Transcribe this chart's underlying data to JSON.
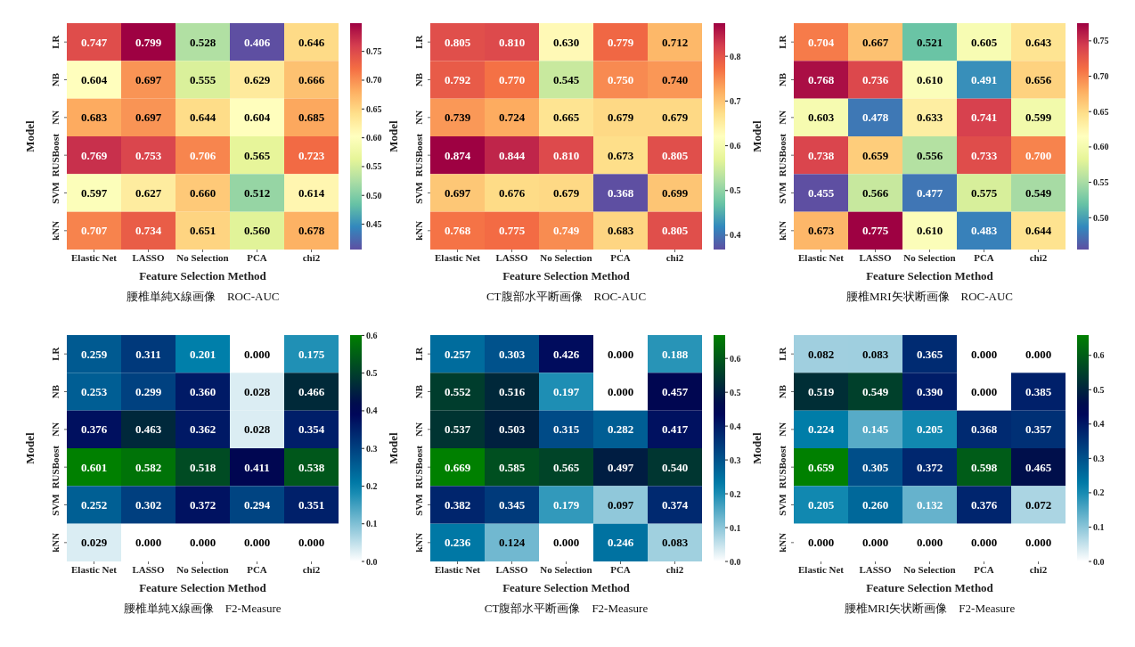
{
  "chart_data": [
    {
      "type": "heatmap",
      "title": "腰椎単純X線画像　ROC-AUC",
      "xlabel": "Feature Selection Method",
      "ylabel": "Model",
      "categories": [
        "Elastic Net",
        "LASSO",
        "No Selection",
        "PCA",
        "chi2"
      ],
      "y_categories": [
        "LR",
        "NB",
        "NN",
        "RUSBoost",
        "SVM",
        "kNN"
      ],
      "cells": [
        [
          0.747,
          0.799,
          0.528,
          0.406,
          0.646
        ],
        [
          0.604,
          0.697,
          0.555,
          0.629,
          0.666
        ],
        [
          0.683,
          0.697,
          0.644,
          0.604,
          0.685
        ],
        [
          0.769,
          0.753,
          0.706,
          0.565,
          0.723
        ],
        [
          0.597,
          0.627,
          0.66,
          0.512,
          0.614
        ],
        [
          0.707,
          0.734,
          0.651,
          0.56,
          0.678
        ]
      ],
      "cell_labels": [
        [
          "0.747",
          "0.799",
          "0.528",
          "0.406",
          "0.646"
        ],
        [
          "0.604",
          "0.697",
          "0.555",
          "0.629",
          "0.666"
        ],
        [
          "0.683",
          "0.697",
          "0.644",
          "0.604",
          "0.685"
        ],
        [
          "0.769",
          "0.753",
          "0.706",
          "0.565",
          "0.723"
        ],
        [
          "0.597",
          "0.627",
          "0.660",
          "0.512",
          "0.614"
        ],
        [
          "0.707",
          "0.734",
          "0.651",
          "0.560",
          "0.678"
        ]
      ],
      "clim": [
        0.406,
        0.799
      ],
      "cticks": [
        {
          "value": 0.45,
          "label": "0.45"
        },
        {
          "value": 0.5,
          "label": "0.50"
        },
        {
          "value": 0.55,
          "label": "0.55"
        },
        {
          "value": 0.6,
          "label": "0.60"
        },
        {
          "value": 0.65,
          "label": "0.65"
        },
        {
          "value": 0.7,
          "label": "0.70"
        },
        {
          "value": 0.75,
          "label": "0.75"
        }
      ]
    },
    {
      "type": "heatmap",
      "title": "CT腹部水平断画像　ROC-AUC",
      "xlabel": "Feature Selection Method",
      "ylabel": "Model",
      "categories": [
        "Elastic Net",
        "LASSO",
        "No Selection",
        "PCA",
        "chi2"
      ],
      "y_categories": [
        "LR",
        "NB",
        "NN",
        "RUSBoost",
        "SVM",
        "kNN"
      ],
      "cells": [
        [
          0.805,
          0.81,
          0.63,
          0.779,
          0.712
        ],
        [
          0.792,
          0.77,
          0.545,
          0.75,
          0.74
        ],
        [
          0.739,
          0.724,
          0.665,
          0.679,
          0.679
        ],
        [
          0.874,
          0.844,
          0.81,
          0.673,
          0.805
        ],
        [
          0.697,
          0.676,
          0.679,
          0.368,
          0.699
        ],
        [
          0.768,
          0.775,
          0.749,
          0.683,
          0.805
        ]
      ],
      "cell_labels": [
        [
          "0.805",
          "0.810",
          "0.630",
          "0.779",
          "0.712"
        ],
        [
          "0.792",
          "0.770",
          "0.545",
          "0.750",
          "0.740"
        ],
        [
          "0.739",
          "0.724",
          "0.665",
          "0.679",
          "0.679"
        ],
        [
          "0.874",
          "0.844",
          "0.810",
          "0.673",
          "0.805"
        ],
        [
          "0.697",
          "0.676",
          "0.679",
          "0.368",
          "0.699"
        ],
        [
          "0.768",
          "0.775",
          "0.749",
          "0.683",
          "0.805"
        ]
      ],
      "clim": [
        0.368,
        0.874
      ],
      "cticks": [
        0.4,
        0.5,
        0.6,
        0.7,
        0.8
      ]
    },
    {
      "type": "heatmap",
      "title": "腰椎MRI矢状断画像　ROC-AUC",
      "xlabel": "Feature Selection Method",
      "ylabel": "Model",
      "categories": [
        "Elastic Net",
        "LASSO",
        "No Selection",
        "PCA",
        "chi2"
      ],
      "y_categories": [
        "LR",
        "NB",
        "NN",
        "RUSBoost",
        "SVM",
        "kNN"
      ],
      "cells": [
        [
          0.704,
          0.667,
          0.521,
          0.605,
          0.643
        ],
        [
          0.768,
          0.736,
          0.61,
          0.491,
          0.656
        ],
        [
          0.603,
          0.478,
          0.633,
          0.741,
          0.599
        ],
        [
          0.738,
          0.659,
          0.556,
          0.733,
          0.7
        ],
        [
          0.455,
          0.566,
          0.477,
          0.575,
          0.549
        ],
        [
          0.673,
          0.775,
          0.61,
          0.483,
          0.644
        ]
      ],
      "cell_labels": [
        [
          "0.704",
          "0.667",
          "0.521",
          "0.605",
          "0.643"
        ],
        [
          "0.768",
          "0.736",
          "0.610",
          "0.491",
          "0.656"
        ],
        [
          "0.603",
          "0.478",
          "0.633",
          "0.741",
          "0.599"
        ],
        [
          "0.738",
          "0.659",
          "0.556",
          "0.733",
          "0.700"
        ],
        [
          "0.455",
          "0.566",
          "0.477",
          "0.575",
          "0.549"
        ],
        [
          "0.673",
          "0.775",
          "0.610",
          "0.483",
          "0.644"
        ]
      ],
      "clim": [
        0.455,
        0.775
      ],
      "cticks": [
        {
          "value": 0.5,
          "label": "0.50"
        },
        {
          "value": 0.55,
          "label": "0.55"
        },
        {
          "value": 0.6,
          "label": "0.60"
        },
        {
          "value": 0.65,
          "label": "0.65"
        },
        {
          "value": 0.7,
          "label": "0.70"
        },
        {
          "value": 0.75,
          "label": "0.75"
        }
      ]
    },
    {
      "type": "heatmap",
      "title": "腰椎単純X線画像　F2-Measure",
      "xlabel": "Feature Selection Method",
      "ylabel": "Model",
      "categories": [
        "Elastic Net",
        "LASSO",
        "No Selection",
        "PCA",
        "chi2"
      ],
      "y_categories": [
        "LR",
        "NB",
        "NN",
        "RUSBoost",
        "SVM",
        "kNN"
      ],
      "cells": [
        [
          0.259,
          0.311,
          0.201,
          0.0,
          0.175
        ],
        [
          0.253,
          0.299,
          0.36,
          0.028,
          0.466
        ],
        [
          0.376,
          0.463,
          0.362,
          0.028,
          0.354
        ],
        [
          0.601,
          0.582,
          0.518,
          0.411,
          0.538
        ],
        [
          0.252,
          0.302,
          0.372,
          0.294,
          0.351
        ],
        [
          0.029,
          0.0,
          0.0,
          0.0,
          0.0
        ]
      ],
      "cell_labels": [
        [
          "0.259",
          "0.311",
          "0.201",
          "0.000",
          "0.175"
        ],
        [
          "0.253",
          "0.299",
          "0.360",
          "0.028",
          "0.466"
        ],
        [
          "0.376",
          "0.463",
          "0.362",
          "0.028",
          "0.354"
        ],
        [
          "0.601",
          "0.582",
          "0.518",
          "0.411",
          "0.538"
        ],
        [
          "0.252",
          "0.302",
          "0.372",
          "0.294",
          "0.351"
        ],
        [
          "0.029",
          "0.000",
          "0.000",
          "0.000",
          "0.000"
        ]
      ],
      "clim": [
        0,
        0.601
      ],
      "cticks": [
        {
          "value": 0,
          "label": "0.0"
        },
        0.1,
        0.2,
        0.3,
        0.4,
        0.5,
        0.6
      ]
    },
    {
      "type": "heatmap",
      "title": "CT腹部水平断画像　F2-Measure",
      "xlabel": "Feature Selection Method",
      "ylabel": "Model",
      "categories": [
        "Elastic Net",
        "LASSO",
        "No Selection",
        "PCA",
        "chi2"
      ],
      "y_categories": [
        "LR",
        "NB",
        "NN",
        "RUSBoost",
        "SVM",
        "kNN"
      ],
      "cells": [
        [
          0.257,
          0.303,
          0.426,
          0.0,
          0.188
        ],
        [
          0.552,
          0.516,
          0.197,
          0.0,
          0.457
        ],
        [
          0.537,
          0.503,
          0.315,
          0.282,
          0.417
        ],
        [
          0.669,
          0.585,
          0.565,
          0.497,
          0.54
        ],
        [
          0.382,
          0.345,
          0.179,
          0.097,
          0.374
        ],
        [
          0.236,
          0.124,
          0.0,
          0.246,
          0.083
        ]
      ],
      "cell_labels": [
        [
          "0.257",
          "0.303",
          "0.426",
          "0.000",
          "0.188"
        ],
        [
          "0.552",
          "0.516",
          "0.197",
          "0.000",
          "0.457"
        ],
        [
          "0.537",
          "0.503",
          "0.315",
          "0.282",
          "0.417"
        ],
        [
          "0.669",
          "0.585",
          "0.565",
          "0.497",
          "0.540"
        ],
        [
          "0.382",
          "0.345",
          "0.179",
          "0.097",
          "0.374"
        ],
        [
          "0.236",
          "0.124",
          "0.000",
          "0.246",
          "0.083"
        ]
      ],
      "clim": [
        0,
        0.669
      ],
      "cticks": [
        {
          "value": 0,
          "label": "0.0"
        },
        0.1,
        0.2,
        0.3,
        0.4,
        0.5,
        0.6
      ]
    },
    {
      "type": "heatmap",
      "title": "腰椎MRI矢状断画像　F2-Measure",
      "xlabel": "Feature Selection Method",
      "ylabel": "Model",
      "categories": [
        "Elastic Net",
        "LASSO",
        "No Selection",
        "PCA",
        "chi2"
      ],
      "y_categories": [
        "LR",
        "NB",
        "NN",
        "RUSBoost",
        "SVM",
        "kNN"
      ],
      "cells": [
        [
          0.082,
          0.083,
          0.365,
          0.0,
          0.0
        ],
        [
          0.519,
          0.549,
          0.39,
          0.0,
          0.385
        ],
        [
          0.224,
          0.145,
          0.205,
          0.368,
          0.357
        ],
        [
          0.659,
          0.305,
          0.372,
          0.598,
          0.465
        ],
        [
          0.205,
          0.26,
          0.132,
          0.376,
          0.072
        ],
        [
          0.0,
          0.0,
          0.0,
          0.0,
          0.0
        ]
      ],
      "cell_labels": [
        [
          "0.082",
          "0.083",
          "0.365",
          "0.000",
          "0.000"
        ],
        [
          "0.519",
          "0.549",
          "0.390",
          "0.000",
          "0.385"
        ],
        [
          "0.224",
          "0.145",
          "0.205",
          "0.368",
          "0.357"
        ],
        [
          "0.659",
          "0.305",
          "0.372",
          "0.598",
          "0.465"
        ],
        [
          "0.205",
          "0.260",
          "0.132",
          "0.376",
          "0.072"
        ],
        [
          "0.000",
          "0.000",
          "0.000",
          "0.000",
          "0.000"
        ]
      ],
      "clim": [
        0,
        0.659
      ],
      "cticks": [
        {
          "value": 0,
          "label": "0.0"
        },
        0.1,
        0.2,
        0.3,
        0.4,
        0.5,
        0.6
      ]
    }
  ]
}
